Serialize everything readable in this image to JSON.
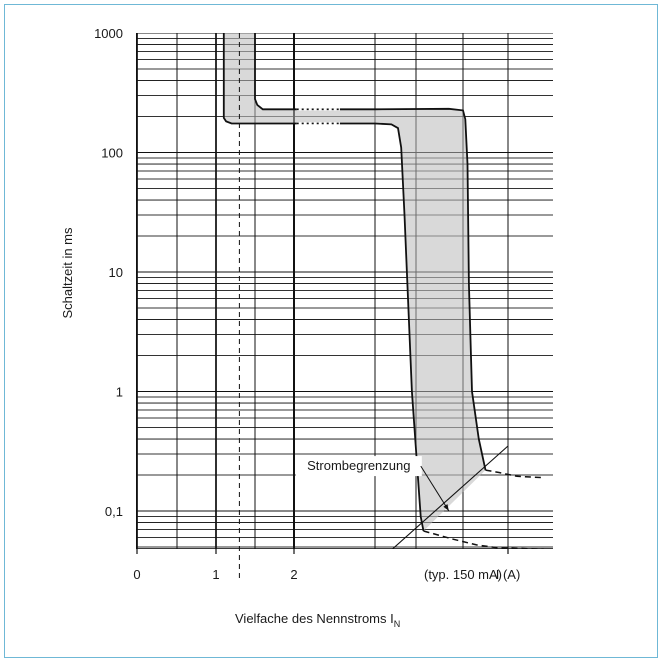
{
  "chart_data": {
    "type": "line",
    "title": "",
    "ylabel": "Schaltzeit in ms",
    "xlabel": "Vielfache des Nennstroms I",
    "xlabel_subscript": "N",
    "y_scale": "log",
    "ylim": [
      0.04,
      1000
    ],
    "y_ticks": [
      {
        "value": 1000,
        "label": "1000"
      },
      {
        "value": 100,
        "label": "100"
      },
      {
        "value": 10,
        "label": "10"
      },
      {
        "value": 1,
        "label": "1"
      },
      {
        "value": 0.1,
        "label": "0,1"
      }
    ],
    "x_ticks": [
      {
        "value": 0,
        "label": "0"
      },
      {
        "value": 1,
        "label": "1"
      },
      {
        "value": 2,
        "label": "2"
      },
      {
        "value": 4.5,
        "label": "(typ. 150 mA)"
      },
      {
        "value": 5.5,
        "label": "I (A)"
      }
    ],
    "xlim": [
      -0.3,
      6
    ],
    "grid": true,
    "series": [
      {
        "x": [
          1.1,
          1.1,
          1.13,
          1.2,
          1.5,
          2.0,
          2.5,
          3.0,
          3.5,
          3.7,
          3.78,
          3.82,
          3.86,
          3.95,
          4.05,
          4.08
        ],
        "y": [
          1000,
          195,
          182,
          175,
          175,
          175,
          175,
          175,
          175,
          172,
          160,
          110,
          30,
          1.0,
          0.09,
          0.068
        ]
      },
      {
        "x": [
          1.5,
          1.5,
          1.53,
          1.6,
          2.0,
          2.5,
          3.0,
          3.5,
          4.35,
          4.5,
          4.55,
          4.6,
          4.63,
          4.7,
          4.85,
          5.0
        ],
        "y": [
          1000,
          280,
          250,
          230,
          230,
          230,
          230,
          230,
          232,
          225,
          190,
          80,
          8,
          1.0,
          0.4,
          0.22
        ]
      }
    ],
    "extensions": [
      {
        "x": [
          5.0,
          5.3,
          5.6,
          5.9
        ],
        "y": [
          0.22,
          0.21,
          0.195,
          0.19
        ]
      },
      {
        "x": [
          4.08,
          4.4,
          4.8,
          5.3,
          5.9
        ],
        "y": [
          0.068,
          0.058,
          0.052,
          0.049,
          0.048
        ]
      }
    ],
    "limit_line": {
      "x": [
        3.65,
        5.5
      ],
      "y": [
        0.044,
        0.35
      ]
    },
    "reference_line": {
      "x": 1.3
    },
    "annotations": [
      {
        "label": "Strombegrenzung",
        "x": 3.2,
        "y": 0.22,
        "point_x": 4.35,
        "point_y": 0.1
      }
    ]
  }
}
